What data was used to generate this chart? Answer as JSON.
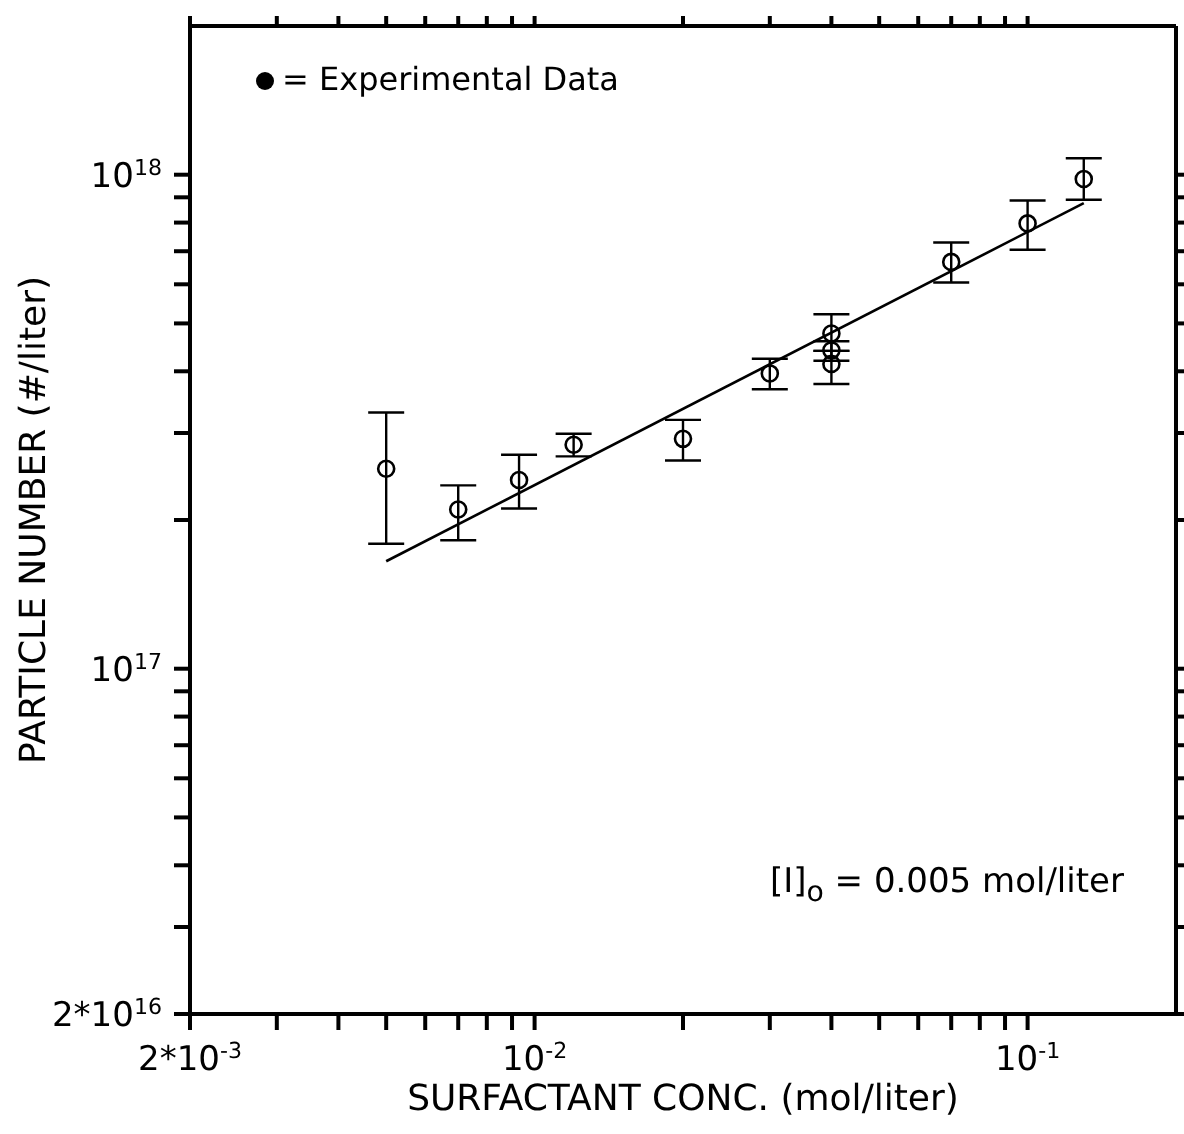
{
  "chart_data": {
    "type": "scatter",
    "xlabel": "SURFACTANT CONC. (mol/liter)",
    "ylabel": "PARTICLE NUMBER (#/liter)",
    "log": "xy",
    "xlim": [
      0.002,
      0.2
    ],
    "ylim": [
      2e+16,
      2e+18
    ],
    "xticks": [
      {
        "value": 0.002,
        "label": "2*10$^{-3}$"
      },
      {
        "value": 0.003,
        "label": null
      },
      {
        "value": 0.004,
        "label": null
      },
      {
        "value": 0.005,
        "label": null
      },
      {
        "value": 0.006,
        "label": null
      },
      {
        "value": 0.007,
        "label": null
      },
      {
        "value": 0.008,
        "label": null
      },
      {
        "value": 0.009,
        "label": null
      },
      {
        "value": 0.01,
        "label": "10$^{-2}$"
      },
      {
        "value": 0.02,
        "label": null
      },
      {
        "value": 0.03,
        "label": null
      },
      {
        "value": 0.04,
        "label": null
      },
      {
        "value": 0.05,
        "label": null
      },
      {
        "value": 0.06,
        "label": null
      },
      {
        "value": 0.07,
        "label": null
      },
      {
        "value": 0.08,
        "label": null
      },
      {
        "value": 0.09,
        "label": null
      },
      {
        "value": 0.1,
        "label": "10$^{-1}$"
      }
    ],
    "yticks": [
      {
        "value": 2e+16,
        "label": "2*10$^{16}$"
      },
      {
        "value": 3e+16,
        "label": null
      },
      {
        "value": 4e+16,
        "label": null
      },
      {
        "value": 5e+16,
        "label": null
      },
      {
        "value": 6e+16,
        "label": null
      },
      {
        "value": 7e+16,
        "label": null
      },
      {
        "value": 8e+16,
        "label": null
      },
      {
        "value": 9e+16,
        "label": null
      },
      {
        "value": 1e+17,
        "label": "10$^{17}$"
      },
      {
        "value": 2e+17,
        "label": null
      },
      {
        "value": 3e+17,
        "label": null
      },
      {
        "value": 4e+17,
        "label": null
      },
      {
        "value": 5e+17,
        "label": null
      },
      {
        "value": 6e+17,
        "label": null
      },
      {
        "value": 7e+17,
        "label": null
      },
      {
        "value": 8e+17,
        "label": null
      },
      {
        "value": 9e+17,
        "label": null
      },
      {
        "value": 1e+18,
        "label": "10$^{18}$"
      }
    ],
    "grid": false,
    "legend": "top left",
    "marker": "circle",
    "annotations": [
      "[I]$_{o}$ = 0.005 mol/liter"
    ],
    "series": [
      {
        "name": "= Experimental Data",
        "color": "#000000",
        "x": [
          0.005,
          0.007,
          0.0093,
          0.012,
          0.02,
          0.03,
          0.04,
          0.04,
          0.04,
          0.07,
          0.1,
          0.13
        ],
        "values": [
          2.54e+17,
          2.1e+17,
          2.41e+17,
          2.84e+17,
          2.92e+17,
          3.96e+17,
          4.77e+17,
          4.41e+17,
          4.14e+17,
          6.66e+17,
          7.97e+17,
          9.8e+17
        ],
        "errors": [
          [
            1.79e+17,
            3.3e+17
          ],
          [
            1.82e+17,
            2.35e+17
          ],
          [
            2.11e+17,
            2.71e+17
          ],
          [
            2.69e+17,
            2.99e+17
          ],
          [
            2.64e+17,
            3.19e+17
          ],
          [
            3.68e+17,
            4.24e+17
          ],
          [
            4.4e+17,
            5.22e+17
          ],
          [
            4.2e+17,
            4.6e+17
          ],
          [
            3.77e+17,
            4.4e+17
          ],
          [
            6.05e+17,
            7.29e+17
          ],
          [
            7.05e+17,
            8.87e+17
          ],
          [
            8.9e+17,
            1.08e+18
          ]
        ]
      },
      {
        "type": "line",
        "color": "#000000",
        "marker": "none",
        "line_style": "solid",
        "x": [
          0.005,
          0.13
        ],
        "values": [
          1.65e+17,
          8.76e+17
        ]
      }
    ]
  }
}
